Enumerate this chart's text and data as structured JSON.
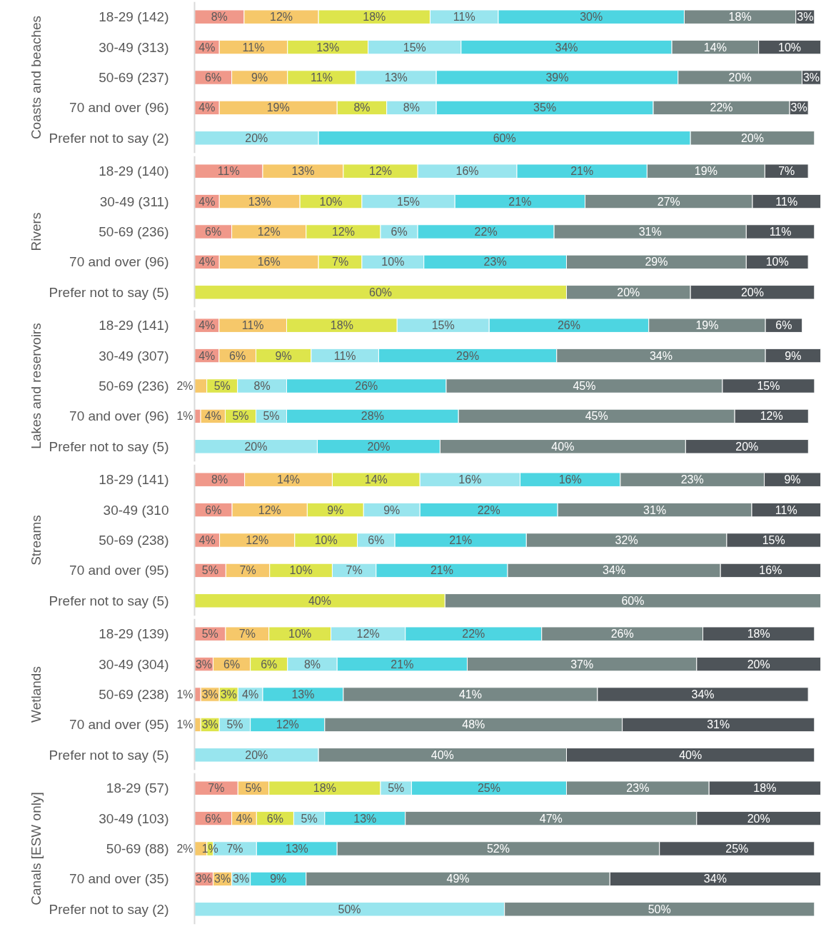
{
  "chart_data": [
    {
      "type": "bar",
      "orientation": "horizontal",
      "stacked": true,
      "tick_labels": "y",
      "title": "Coasts and beaches",
      "categories": [
        "18-29 (142)",
        "30-49 (313)",
        "50-69 (237)",
        "70 and over (96)",
        "Prefer not to say (2)"
      ],
      "series": [
        {
          "color": "#f0988a",
          "values": [
            8,
            4,
            6,
            4,
            null
          ],
          "value_labels": [
            "8%",
            "4%",
            "6%",
            "4%",
            null
          ]
        },
        {
          "color": "#f6c86a",
          "values": [
            12,
            11,
            9,
            19,
            null
          ],
          "value_labels": [
            "12%",
            "11%",
            "9%",
            "19%",
            null
          ]
        },
        {
          "color": "#dde54c",
          "values": [
            18,
            13,
            11,
            8,
            null
          ],
          "value_labels": [
            "18%",
            "13%",
            "11%",
            "8%",
            null
          ]
        },
        {
          "color": "#98e5ee",
          "values": [
            11,
            15,
            13,
            8,
            20
          ],
          "value_labels": [
            "11%",
            "15%",
            "13%",
            "8%",
            "20%"
          ]
        },
        {
          "color": "#4dd5e1",
          "values": [
            30,
            34,
            39,
            35,
            60
          ],
          "value_labels": [
            "30%",
            "34%",
            "39%",
            "35%",
            "60%"
          ]
        },
        {
          "color": "#778886",
          "values": [
            18,
            14,
            20,
            22,
            20
          ],
          "value_labels": [
            "18%",
            "14%",
            "20%",
            "22%",
            "20%"
          ]
        },
        {
          "color": "#4e5459",
          "values": [
            3,
            10,
            3,
            3,
            null
          ],
          "value_labels": [
            "3%",
            "10%",
            "3%",
            "3%",
            null
          ]
        }
      ]
    },
    {
      "type": "bar",
      "orientation": "horizontal",
      "stacked": true,
      "tick_labels": "y",
      "title": "Rivers",
      "categories": [
        "18-29 (140)",
        "30-49 (311)",
        "50-69 (236)",
        "70 and over (96)",
        "Prefer not to say (5)"
      ],
      "series": [
        {
          "color": "#f0988a",
          "values": [
            11,
            4,
            6,
            4,
            null
          ],
          "value_labels": [
            "11%",
            "4%",
            "6%",
            "4%",
            null
          ]
        },
        {
          "color": "#f6c86a",
          "values": [
            13,
            13,
            12,
            16,
            null
          ],
          "value_labels": [
            "13%",
            "13%",
            "12%",
            "16%",
            null
          ]
        },
        {
          "color": "#dde54c",
          "values": [
            12,
            10,
            12,
            7,
            60
          ],
          "value_labels": [
            "12%",
            "10%",
            "12%",
            "7%",
            "60%"
          ]
        },
        {
          "color": "#98e5ee",
          "values": [
            16,
            15,
            6,
            10,
            null
          ],
          "value_labels": [
            "16%",
            "15%",
            "6%",
            "10%",
            null
          ]
        },
        {
          "color": "#4dd5e1",
          "values": [
            21,
            21,
            22,
            23,
            null
          ],
          "value_labels": [
            "21%",
            "21%",
            "22%",
            "23%",
            null
          ]
        },
        {
          "color": "#778886",
          "values": [
            19,
            27,
            31,
            29,
            20
          ],
          "value_labels": [
            "19%",
            "27%",
            "31%",
            "29%",
            "20%"
          ]
        },
        {
          "color": "#4e5459",
          "values": [
            7,
            11,
            11,
            10,
            20
          ],
          "value_labels": [
            "7%",
            "11%",
            "11%",
            "10%",
            "20%"
          ]
        }
      ]
    },
    {
      "type": "bar",
      "orientation": "horizontal",
      "stacked": true,
      "tick_labels": "y",
      "title": "Lakes and reservoirs",
      "categories": [
        "18-29 (141)",
        "30-49 (307)",
        "50-69 (236)",
        "70 and over (96)",
        "Prefer not to say (5)"
      ],
      "series": [
        {
          "color": "#f0988a",
          "values": [
            4,
            4,
            null,
            1,
            null
          ],
          "value_labels": [
            "4%",
            "4%",
            null,
            "1%",
            null
          ]
        },
        {
          "color": "#f6c86a",
          "values": [
            11,
            6,
            2,
            4,
            null
          ],
          "value_labels": [
            "11%",
            "6%",
            "2%",
            "4%",
            null
          ]
        },
        {
          "color": "#dde54c",
          "values": [
            18,
            9,
            5,
            5,
            null
          ],
          "value_labels": [
            "18%",
            "9%",
            "5%",
            "5%",
            null
          ]
        },
        {
          "color": "#98e5ee",
          "values": [
            15,
            11,
            8,
            5,
            20
          ],
          "value_labels": [
            "15%",
            "11%",
            "8%",
            "5%",
            "20%"
          ]
        },
        {
          "color": "#4dd5e1",
          "values": [
            26,
            29,
            26,
            28,
            20
          ],
          "value_labels": [
            "26%",
            "29%",
            "26%",
            "28%",
            "20%"
          ]
        },
        {
          "color": "#778886",
          "values": [
            19,
            34,
            45,
            45,
            40
          ],
          "value_labels": [
            "19%",
            "34%",
            "45%",
            "45%",
            "40%"
          ]
        },
        {
          "color": "#4e5459",
          "values": [
            6,
            9,
            15,
            12,
            20
          ],
          "value_labels": [
            "6%",
            "9%",
            "15%",
            "12%",
            "20%"
          ]
        }
      ]
    },
    {
      "type": "bar",
      "orientation": "horizontal",
      "stacked": true,
      "tick_labels": "y",
      "title": "Streams",
      "categories": [
        "18-29 (141)",
        "30-49 (310",
        "50-69 (238)",
        "70 and over (95)",
        "Prefer not to say (5)"
      ],
      "series": [
        {
          "color": "#f0988a",
          "values": [
            8,
            6,
            4,
            5,
            null
          ],
          "value_labels": [
            "8%",
            "6%",
            "4%",
            "5%",
            null
          ]
        },
        {
          "color": "#f6c86a",
          "values": [
            14,
            12,
            12,
            7,
            null
          ],
          "value_labels": [
            "14%",
            "12%",
            "12%",
            "7%",
            null
          ]
        },
        {
          "color": "#dde54c",
          "values": [
            14,
            9,
            10,
            10,
            40
          ],
          "value_labels": [
            "14%",
            "9%",
            "10%",
            "10%",
            "40%"
          ]
        },
        {
          "color": "#98e5ee",
          "values": [
            16,
            9,
            6,
            7,
            null
          ],
          "value_labels": [
            "16%",
            "9%",
            "6%",
            "7%",
            null
          ]
        },
        {
          "color": "#4dd5e1",
          "values": [
            16,
            22,
            21,
            21,
            null
          ],
          "value_labels": [
            "16%",
            "22%",
            "21%",
            "21%",
            null
          ]
        },
        {
          "color": "#778886",
          "values": [
            23,
            31,
            32,
            34,
            60
          ],
          "value_labels": [
            "23%",
            "31%",
            "32%",
            "34%",
            "60%"
          ]
        },
        {
          "color": "#4e5459",
          "values": [
            9,
            11,
            15,
            16,
            null
          ],
          "value_labels": [
            "9%",
            "11%",
            "15%",
            "16%",
            null
          ]
        }
      ]
    },
    {
      "type": "bar",
      "orientation": "horizontal",
      "stacked": true,
      "tick_labels": "y",
      "title": "Wetlands",
      "categories": [
        "18-29 (139)",
        "30-49 (304)",
        "50-69 (238)",
        "70 and over (95)",
        "Prefer not to say (5)"
      ],
      "series": [
        {
          "color": "#f0988a",
          "values": [
            5,
            3,
            1,
            null,
            null
          ],
          "value_labels": [
            "5%",
            "3%",
            "1%",
            null,
            null
          ]
        },
        {
          "color": "#f6c86a",
          "values": [
            7,
            6,
            3,
            1,
            null
          ],
          "value_labels": [
            "7%",
            "6%",
            "3%",
            "1%",
            null
          ]
        },
        {
          "color": "#dde54c",
          "values": [
            10,
            6,
            3,
            3,
            null
          ],
          "value_labels": [
            "10%",
            "6%",
            "3%",
            "3%",
            null
          ]
        },
        {
          "color": "#98e5ee",
          "values": [
            12,
            8,
            4,
            5,
            20
          ],
          "value_labels": [
            "12%",
            "8%",
            "4%",
            "5%",
            "20%"
          ]
        },
        {
          "color": "#4dd5e1",
          "values": [
            22,
            21,
            13,
            12,
            null
          ],
          "value_labels": [
            "22%",
            "21%",
            "13%",
            "12%",
            null
          ]
        },
        {
          "color": "#778886",
          "values": [
            26,
            37,
            41,
            48,
            40
          ],
          "value_labels": [
            "26%",
            "37%",
            "41%",
            "48%",
            "40%"
          ]
        },
        {
          "color": "#4e5459",
          "values": [
            18,
            20,
            34,
            31,
            40
          ],
          "value_labels": [
            "18%",
            "20%",
            "34%",
            "31%",
            "40%"
          ]
        }
      ]
    },
    {
      "type": "bar",
      "orientation": "horizontal",
      "stacked": true,
      "tick_labels": "y",
      "title": "Canals [ESW only]",
      "categories": [
        "18-29 (57)",
        "30-49 (103)",
        "50-69 (88)",
        "70 and over (35)",
        "Prefer not to say (2)"
      ],
      "series": [
        {
          "color": "#f0988a",
          "values": [
            7,
            6,
            null,
            3,
            null
          ],
          "value_labels": [
            "7%",
            "6%",
            null,
            "3%",
            null
          ]
        },
        {
          "color": "#f6c86a",
          "values": [
            5,
            4,
            2,
            3,
            null
          ],
          "value_labels": [
            "5%",
            "4%",
            "2%",
            "3%",
            null
          ]
        },
        {
          "color": "#dde54c",
          "values": [
            18,
            6,
            1,
            null,
            null
          ],
          "value_labels": [
            "18%",
            "6%",
            "1%",
            null,
            null
          ]
        },
        {
          "color": "#98e5ee",
          "values": [
            5,
            5,
            7,
            3,
            50
          ],
          "value_labels": [
            "5%",
            "5%",
            "7%",
            "3%",
            "50%"
          ]
        },
        {
          "color": "#4dd5e1",
          "values": [
            25,
            13,
            13,
            9,
            null
          ],
          "value_labels": [
            "25%",
            "13%",
            "13%",
            "9%",
            null
          ]
        },
        {
          "color": "#778886",
          "values": [
            23,
            47,
            52,
            49,
            50
          ],
          "value_labels": [
            "23%",
            "47%",
            "52%",
            "49%",
            "50%"
          ]
        },
        {
          "color": "#4e5459",
          "values": [
            18,
            20,
            25,
            34,
            null
          ],
          "value_labels": [
            "18%",
            "20%",
            "25%",
            "34%",
            null
          ]
        }
      ]
    }
  ]
}
